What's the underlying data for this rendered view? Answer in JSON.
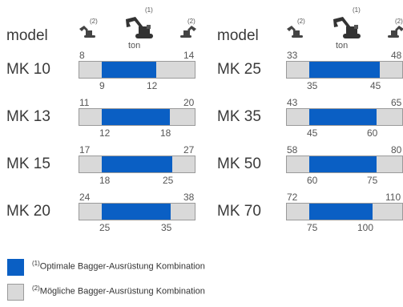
{
  "chart_data": {
    "type": "bar",
    "header": {
      "model_label": "model",
      "unit_label": "ton",
      "marker_large": "(1)",
      "marker_small": "(2)"
    },
    "colors": {
      "optimal": "#0a5fc4",
      "possible": "#d9d9d9"
    },
    "rows": [
      {
        "model": "MK 10",
        "possible_min": 8,
        "possible_max": 14,
        "optimal_min": 9,
        "optimal_max": 12
      },
      {
        "model": "MK 13",
        "possible_min": 11,
        "possible_max": 20,
        "optimal_min": 12,
        "optimal_max": 18
      },
      {
        "model": "MK 15",
        "possible_min": 17,
        "possible_max": 27,
        "optimal_min": 18,
        "optimal_max": 25
      },
      {
        "model": "MK 20",
        "possible_min": 24,
        "possible_max": 38,
        "optimal_min": 25,
        "optimal_max": 35
      },
      {
        "model": "MK 25",
        "possible_min": 33,
        "possible_max": 48,
        "optimal_min": 35,
        "optimal_max": 45
      },
      {
        "model": "MK 35",
        "possible_min": 43,
        "possible_max": 65,
        "optimal_min": 45,
        "optimal_max": 60
      },
      {
        "model": "MK 50",
        "possible_min": 58,
        "possible_max": 80,
        "optimal_min": 60,
        "optimal_max": 75
      },
      {
        "model": "MK 70",
        "possible_min": 72,
        "possible_max": 110,
        "optimal_min": 75,
        "optimal_max": 100
      }
    ],
    "legend": [
      {
        "marker": "(1)",
        "label": "Optimale Bagger-Ausrüstung Kombination"
      },
      {
        "marker": "(2)",
        "label": "Mögliche Bagger-Ausrüstung Kombination"
      }
    ]
  }
}
